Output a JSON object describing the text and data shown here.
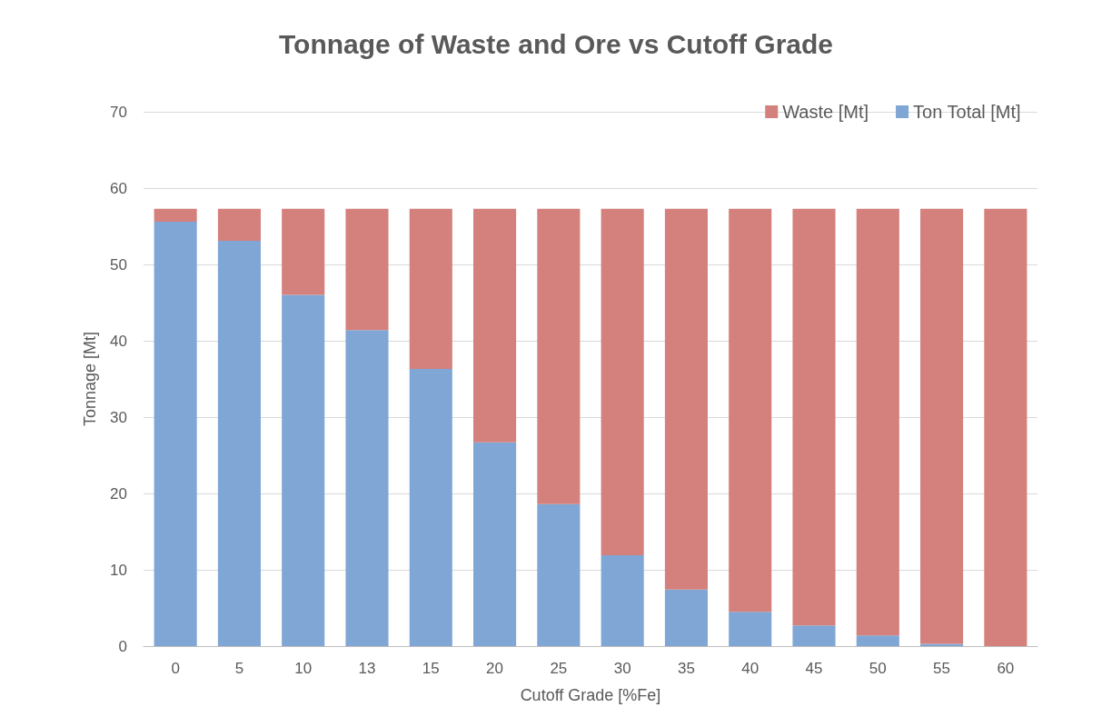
{
  "chart_data": {
    "type": "bar",
    "title": "Tonnage of Waste and Ore vs Cutoff Grade",
    "xlabel": "Cutoff Grade [%Fe]",
    "ylabel": "Tonnage [Mt]",
    "categories": [
      "0",
      "5",
      "10",
      "13",
      "15",
      "20",
      "25",
      "30",
      "35",
      "40",
      "45",
      "50",
      "55",
      "60"
    ],
    "stacked": true,
    "series": [
      {
        "name": "Ton Total [Mt]",
        "color": "#7fa6d4",
        "values": [
          55.6,
          53.1,
          46.0,
          41.4,
          36.3,
          26.7,
          18.6,
          11.9,
          7.4,
          4.5,
          2.7,
          1.4,
          0.3,
          0
        ]
      },
      {
        "name": "Waste [Mt]",
        "color": "#d4807c",
        "values": [
          1.7,
          4.2,
          11.3,
          15.9,
          21.0,
          30.6,
          38.7,
          45.4,
          49.9,
          52.8,
          54.6,
          55.9,
          57.0,
          57.3
        ]
      }
    ],
    "ylim": [
      0,
      70
    ],
    "yticks": [
      0,
      10,
      20,
      30,
      40,
      50,
      60,
      70
    ],
    "grid": "y",
    "legend": "top right"
  }
}
